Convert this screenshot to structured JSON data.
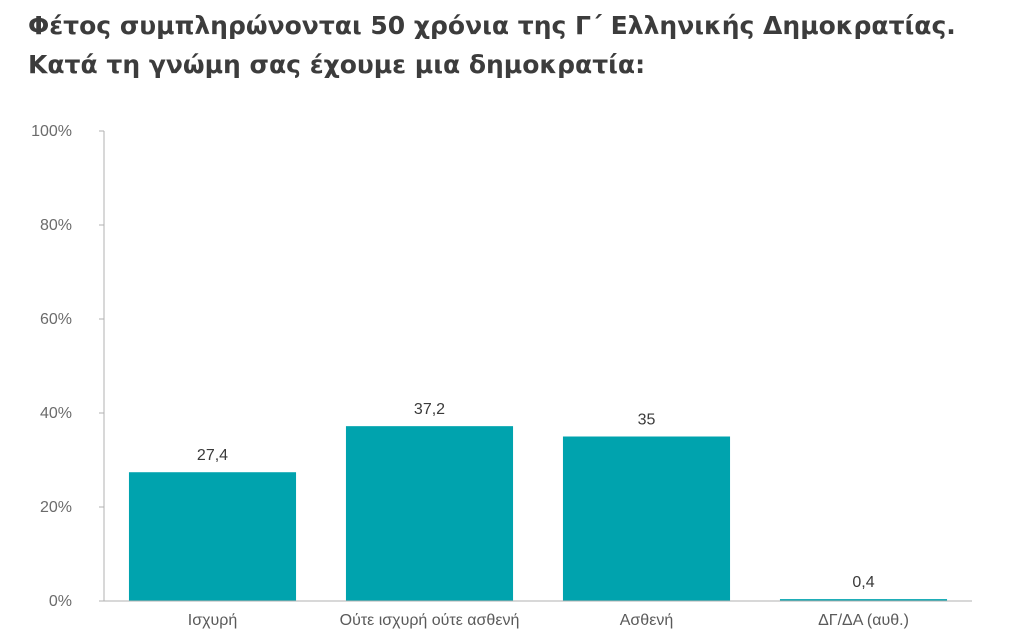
{
  "chart_data": {
    "type": "bar",
    "title_lines": [
      "Φέτος συμπληρώνονται 50 χρόνια της Γ΄ Ελληνικής Δημοκρατίας.",
      "Κατά τη γνώμη σας έχουμε μια δημοκρατία:"
    ],
    "xlabel": "",
    "ylabel": "",
    "categories": [
      "Ισχυρή",
      "Ούτε ισχυρή ούτε ασθενή",
      "Ασθενή",
      "ΔΓ/ΔΑ (αυθ.)"
    ],
    "values": [
      27.4,
      37.2,
      35,
      0.4
    ],
    "value_labels": [
      "27,4",
      "37,2",
      "35",
      "0,4"
    ],
    "ylim": [
      0,
      100
    ],
    "yticks": [
      0,
      20,
      40,
      60,
      80,
      100
    ],
    "ytick_labels": [
      "0%",
      "20%",
      "40%",
      "60%",
      "80%",
      "100%"
    ],
    "grid": false,
    "legend": "none",
    "colors": {
      "bar": "#00a3ae",
      "axis": "#b0b0b0",
      "title": "#3c3c3c"
    }
  }
}
